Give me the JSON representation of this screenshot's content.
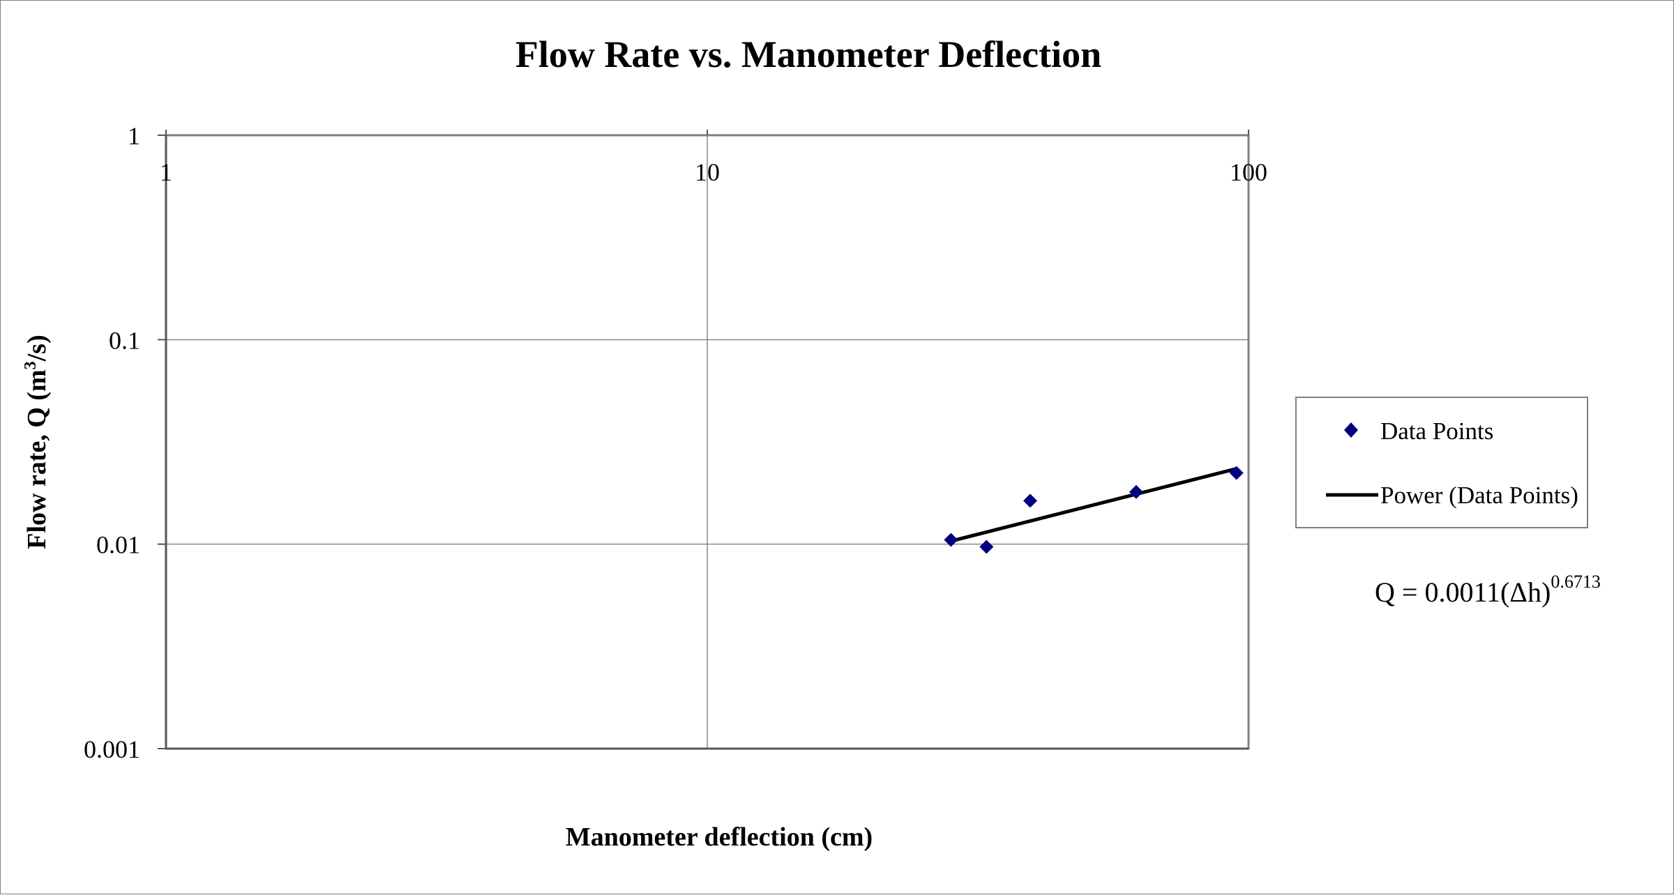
{
  "chart_data": {
    "type": "scatter",
    "title": "Flow Rate vs. Manometer Deflection",
    "xlabel": "Manometer deflection (cm)",
    "ylabel_main": "Flow rate, Q (m",
    "ylabel_sup": "3",
    "ylabel_tail": "/s)",
    "x_scale": "log",
    "y_scale": "log",
    "xlim": [
      1,
      100
    ],
    "ylim": [
      0.001,
      1
    ],
    "x_ticks": [
      1,
      10,
      100
    ],
    "x_tick_labels": [
      "1",
      "10",
      "100"
    ],
    "y_ticks": [
      1,
      0.1,
      0.01,
      0.001
    ],
    "y_tick_labels": [
      "1",
      "0.1",
      "0.01",
      "0.001"
    ],
    "grid": true,
    "series": [
      {
        "name": "Data Points",
        "marker": "diamond",
        "color": "#000080",
        "x": [
          28.2,
          32.8,
          39.5,
          62.0,
          95.0
        ],
        "y": [
          0.0105,
          0.0097,
          0.0163,
          0.018,
          0.0223
        ]
      }
    ],
    "trendline": {
      "name": "Power (Data Points)",
      "color": "#000000",
      "coefficient": 0.0011,
      "exponent": 0.6713,
      "x_range": [
        28.2,
        95.0
      ]
    },
    "equation": {
      "main": "Q = 0.0011(Δh)",
      "sup": "0.6713"
    },
    "legend_position": "right"
  }
}
